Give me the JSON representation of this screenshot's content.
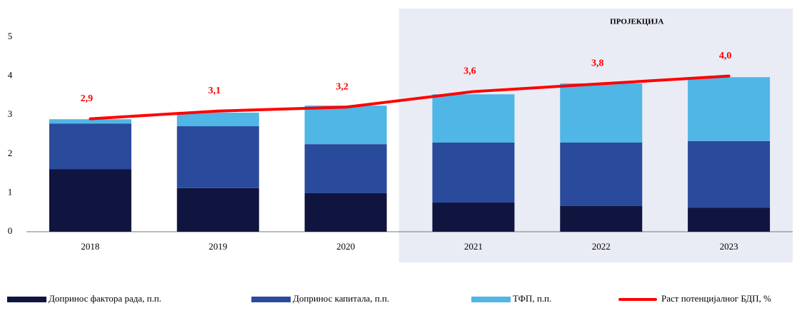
{
  "chart_data": {
    "type": "bar",
    "annotation": "ПРОЈЕКЦИЈА",
    "categories": [
      "2018",
      "2019",
      "2020",
      "2021",
      "2022",
      "2023"
    ],
    "series": [
      {
        "name": "Допринос фактора рада, п.п.",
        "color": "#10153f",
        "values": [
          1.61,
          1.12,
          0.99,
          0.75,
          0.66,
          0.62
        ]
      },
      {
        "name": "Допринос капитала, п.п.",
        "color": "#2a4a9c",
        "values": [
          1.17,
          1.59,
          1.26,
          1.54,
          1.63,
          1.71
        ]
      },
      {
        "name": "ТФП, п.п.",
        "color": "#4fb6e6",
        "values": [
          0.11,
          0.35,
          0.99,
          1.24,
          1.52,
          1.64
        ]
      },
      {
        "name": "Раст потенцијалног  БДП, %",
        "color": "#ff0000",
        "type": "line",
        "values": [
          2.9,
          3.1,
          3.2,
          3.6,
          3.8,
          4.0
        ],
        "value_labels": [
          "2,9",
          "3,1",
          "3,2",
          "3,6",
          "3,8",
          "4,0"
        ]
      }
    ],
    "stacked": true,
    "ylim": [
      0,
      5
    ],
    "yticks": [
      0,
      1,
      2,
      3,
      4,
      5
    ],
    "grid": false,
    "legend": "bottom"
  }
}
